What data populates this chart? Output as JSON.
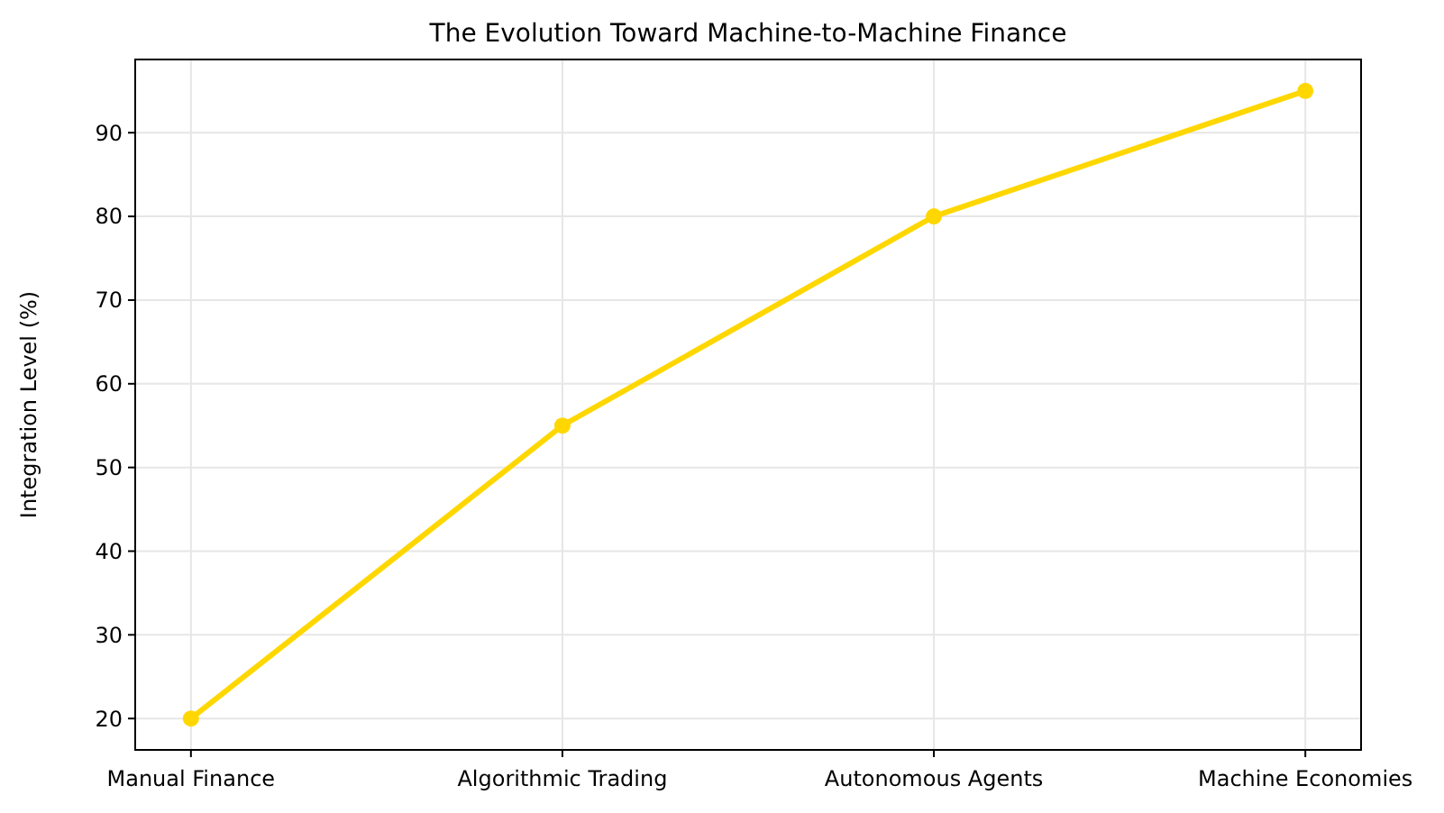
{
  "chart_data": {
    "type": "line",
    "title": "The Evolution Toward Machine-to-Machine Finance",
    "ylabel": "Integration Level (%)",
    "categories": [
      "Manual Finance",
      "Algorithmic Trading",
      "Autonomous Agents",
      "Machine Economies"
    ],
    "series": [
      {
        "color": "#ffd700",
        "values": [
          20,
          55,
          80,
          95
        ]
      }
    ],
    "ylim": [
      16.25,
      98.75
    ],
    "yticks": [
      20,
      30,
      40,
      50,
      60,
      70,
      80,
      90
    ],
    "grid": true,
    "marker": "circle",
    "line_style": "solid"
  }
}
